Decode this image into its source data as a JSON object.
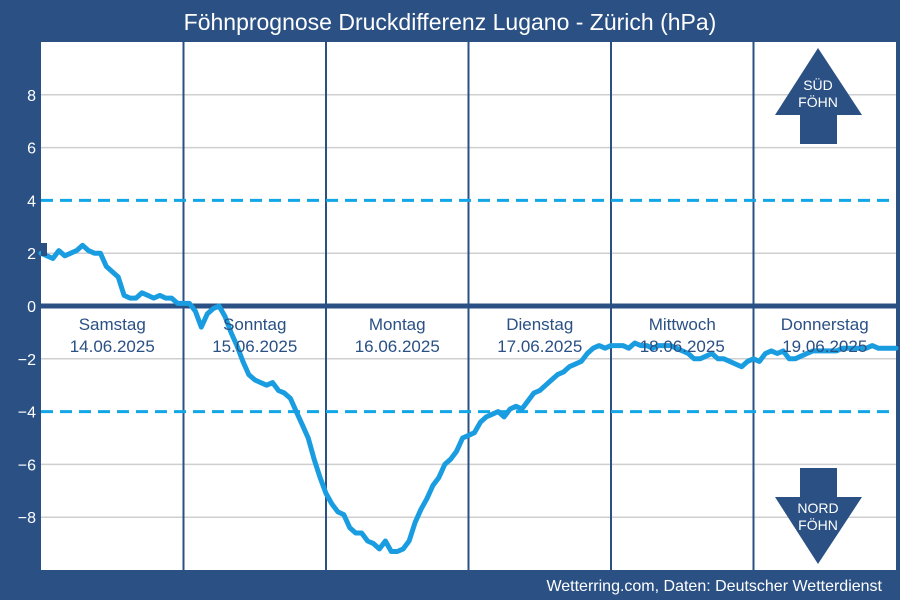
{
  "chart_data": {
    "type": "line",
    "title": "Föhnprognose Druckdifferenz Lugano - Zürich (hPa)",
    "footer": "Wetterring.com, Daten: Deutscher Wetterdienst",
    "xlim": [
      0,
      144
    ],
    "ylim": [
      -10,
      10
    ],
    "y_ticks": [
      "8",
      "6",
      "4",
      "2",
      "0",
      "−2",
      "−4",
      "−6",
      "−8"
    ],
    "y_tick_values": [
      8,
      6,
      4,
      2,
      0,
      -2,
      -4,
      -6,
      -8
    ],
    "threshold_lines": [
      4,
      -4
    ],
    "zero_line": 0,
    "grid": true,
    "days": [
      {
        "name": "Samstag",
        "date": "14.06.2025"
      },
      {
        "name": "Sonntag",
        "date": "15.06.2025"
      },
      {
        "name": "Montag",
        "date": "16.06.2025"
      },
      {
        "name": "Dienstag",
        "date": "17.06.2025"
      },
      {
        "name": "Mittwoch",
        "date": "18.06.2025"
      },
      {
        "name": "Donnerstag",
        "date": "19.06.2025"
      }
    ],
    "arrows": {
      "up": {
        "line1": "SÜD",
        "line2": "FÖHN"
      },
      "down": {
        "line1": "NORD",
        "line2": "FÖHN"
      }
    },
    "colors": {
      "background": "#2a5084",
      "plot": "#ffffff",
      "series": "#1a9de0",
      "threshold": "#12a6e6",
      "frame": "#2a5084"
    },
    "series": [
      {
        "x": [
          0,
          1,
          2,
          3,
          4,
          5,
          6,
          7,
          8,
          9,
          10,
          11,
          12,
          13,
          14,
          15,
          16,
          17,
          18,
          19,
          20,
          21,
          22,
          23,
          24,
          25,
          26,
          27,
          28,
          29,
          30,
          31,
          32,
          33,
          34,
          35,
          36,
          37,
          38,
          39,
          40,
          41,
          42,
          43,
          44,
          45,
          46,
          47,
          48,
          49,
          50,
          51,
          52,
          53,
          54,
          55,
          56,
          57,
          58,
          59,
          60,
          61,
          62,
          63,
          64,
          65,
          66,
          67,
          68,
          69,
          70,
          71,
          72,
          73,
          74,
          75,
          76,
          77,
          78,
          79,
          80,
          81,
          82,
          83,
          84,
          85,
          86,
          87,
          88,
          89,
          90,
          91,
          92,
          93,
          94,
          95,
          96,
          97,
          98,
          99,
          100,
          101,
          102,
          103,
          104,
          105,
          106,
          107,
          108,
          109,
          110,
          111,
          112,
          113,
          114,
          115,
          116,
          117,
          118,
          119,
          120,
          121,
          122,
          123,
          124,
          125,
          126,
          127,
          128,
          129,
          130,
          131,
          132,
          133,
          134,
          135,
          136,
          137,
          138,
          139,
          140,
          141,
          142,
          143,
          144
        ],
        "values": [
          2.0,
          1.9,
          1.8,
          2.1,
          1.9,
          2.0,
          2.1,
          2.3,
          2.1,
          2.0,
          2.0,
          1.5,
          1.3,
          1.1,
          0.4,
          0.3,
          0.3,
          0.5,
          0.4,
          0.3,
          0.4,
          0.3,
          0.3,
          0.1,
          0.1,
          0.1,
          -0.2,
          -0.8,
          -0.3,
          -0.1,
          0.0,
          -0.4,
          -1.0,
          -1.5,
          -2.1,
          -2.6,
          -2.8,
          -2.9,
          -3.0,
          -2.9,
          -3.2,
          -3.3,
          -3.5,
          -4.0,
          -4.5,
          -5.0,
          -5.8,
          -6.5,
          -7.1,
          -7.5,
          -7.8,
          -7.9,
          -8.4,
          -8.6,
          -8.6,
          -8.9,
          -9.0,
          -9.2,
          -8.9,
          -9.3,
          -9.3,
          -9.2,
          -8.9,
          -8.2,
          -7.7,
          -7.3,
          -6.8,
          -6.5,
          -6.0,
          -5.8,
          -5.5,
          -5.0,
          -4.9,
          -4.8,
          -4.4,
          -4.2,
          -4.1,
          -4.0,
          -4.2,
          -3.9,
          -3.8,
          -3.9,
          -3.6,
          -3.3,
          -3.2,
          -3.0,
          -2.8,
          -2.6,
          -2.5,
          -2.3,
          -2.2,
          -2.1,
          -1.8,
          -1.6,
          -1.5,
          -1.6,
          -1.5,
          -1.5,
          -1.5,
          -1.6,
          -1.4,
          -1.5,
          -1.5,
          -1.6,
          -1.5,
          -1.5,
          -1.5,
          -1.6,
          -1.7,
          -1.8,
          -2.0,
          -2.0,
          -1.9,
          -1.8,
          -2.0,
          -2.0,
          -2.1,
          -2.2,
          -2.3,
          -2.1,
          -2.0,
          -2.1,
          -1.8,
          -1.7,
          -1.8,
          -1.7,
          -2.0,
          -2.0,
          -1.9,
          -1.8,
          -1.7,
          -1.7,
          -1.7,
          -1.7,
          -1.7,
          -1.6,
          -1.6,
          -1.6,
          -1.6,
          -1.6,
          -1.5,
          -1.6,
          -1.6,
          -1.6,
          -1.6
        ]
      }
    ]
  }
}
